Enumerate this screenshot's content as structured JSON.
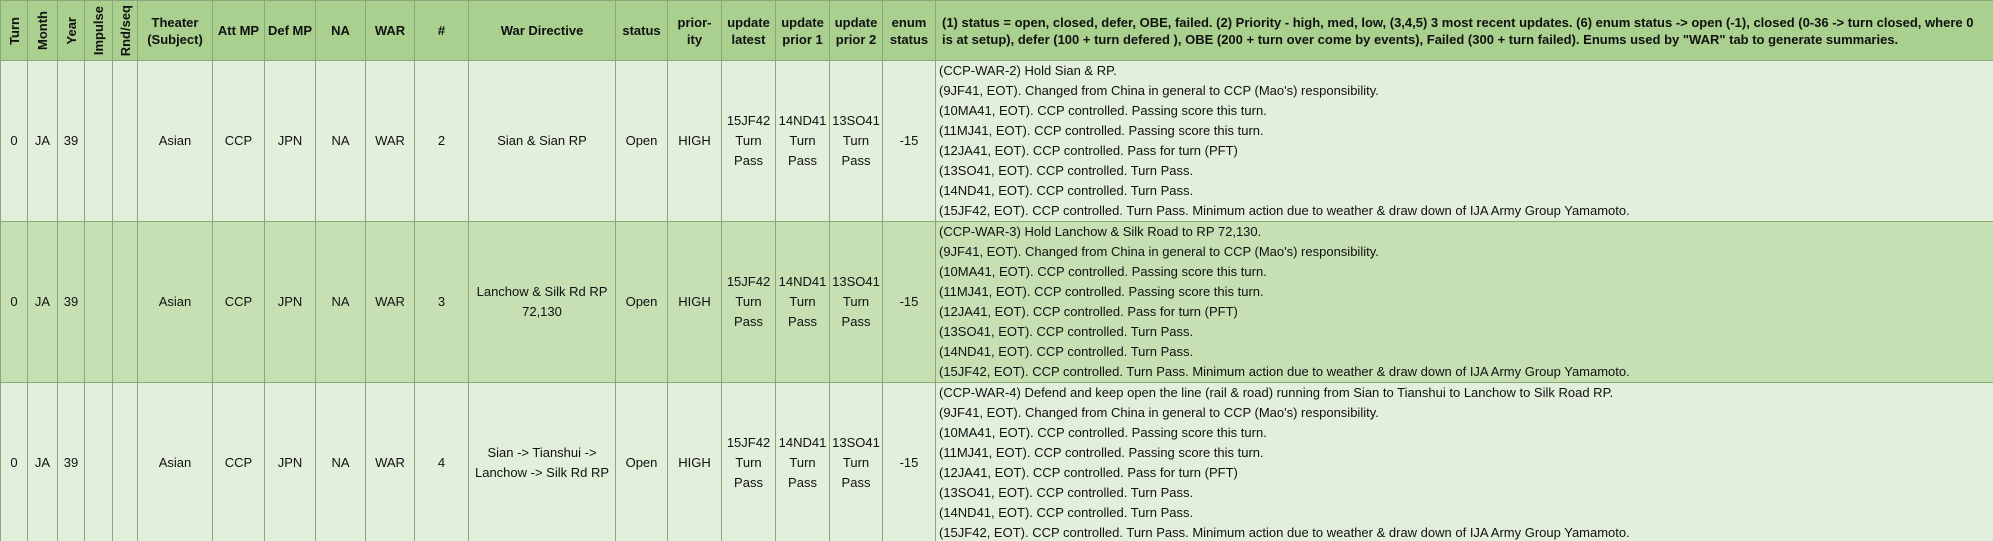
{
  "header": {
    "columns": [
      [
        "Turn"
      ],
      [
        "Month"
      ],
      [
        "Year"
      ],
      [
        "Impulse"
      ],
      [
        "Rnd/seq"
      ],
      [
        "Theater",
        "(Subject)"
      ],
      [
        "Att MP"
      ],
      [
        "Def MP"
      ],
      [
        "NA"
      ],
      [
        "WAR"
      ],
      [
        "#"
      ],
      [
        "War Directive"
      ],
      [
        "status"
      ],
      [
        "prior-",
        "ity"
      ],
      [
        "update",
        "latest"
      ],
      [
        "update",
        "prior 1"
      ],
      [
        "update",
        "prior 2"
      ],
      [
        "enum",
        "status"
      ],
      [
        "(1) status = open, closed, defer, OBE, failed.  (2) Priority - high, med, low,  (3,4,5) 3 most recent updates.  (6) enum status -> open (-1), closed (0-36 -> turn closed, where 0",
        "is at setup), defer (100 + turn defered ), OBE (200 + turn over come by events), Failed (300 + turn failed).  Enums used by \"WAR\" tab to generate summaries."
      ]
    ]
  },
  "rows": [
    {
      "turn": 0,
      "month": "JA",
      "year": 39,
      "theater": "Asian",
      "att_mp": "CCP",
      "def_mp": "JPN",
      "na": "NA",
      "war": "WAR",
      "num": 2,
      "directive": "Sian & Sian RP",
      "status": "Open",
      "priority": "HIGH",
      "update_latest": "15JF42 Turn Pass",
      "update_prior_1": "14ND41 Turn Pass",
      "update_prior_2": "13SO41 Turn Pass",
      "enum_status": -15,
      "notes": [
        "(CCP-WAR-2) Hold Sian & RP.",
        "(9JF41, EOT).  Changed from China in general to CCP (Mao's) responsibility.",
        "(10MA41, EOT).  CCP controlled.  Passing score this turn.",
        "(11MJ41, EOT).  CCP controlled.  Passing score this turn.",
        "(12JA41, EOT). CCP controlled.  Pass for turn (PFT)",
        "(13SO41, EOT).  CCP controlled.  Turn Pass.",
        "(14ND41, EOT).  CCP controlled.  Turn Pass.",
        "(15JF42, EOT).  CCP controlled.  Turn Pass.  Minimum action due to weather & draw down of IJA Army Group Yamamoto."
      ]
    },
    {
      "turn": 0,
      "month": "JA",
      "year": 39,
      "theater": "Asian",
      "att_mp": "CCP",
      "def_mp": "JPN",
      "na": "NA",
      "war": "WAR",
      "num": 3,
      "directive": "Lanchow & Silk Rd RP 72,130",
      "status": "Open",
      "priority": "HIGH",
      "update_latest": "15JF42 Turn Pass",
      "update_prior_1": "14ND41 Turn Pass",
      "update_prior_2": "13SO41 Turn Pass",
      "enum_status": -15,
      "notes": [
        "(CCP-WAR-3) Hold Lanchow & Silk Road to RP 72,130.",
        "(9JF41, EOT).  Changed from China in general to CCP (Mao's) responsibility.",
        "(10MA41, EOT).  CCP controlled.  Passing score this turn.",
        "(11MJ41, EOT).  CCP controlled.  Passing score this turn.",
        "(12JA41, EOT). CCP controlled.  Pass for turn (PFT)",
        "(13SO41, EOT).  CCP controlled.  Turn Pass.",
        "(14ND41, EOT).  CCP controlled.  Turn Pass.",
        "(15JF42, EOT).  CCP controlled.  Turn Pass.  Minimum action due to weather & draw down of IJA Army Group Yamamoto."
      ]
    },
    {
      "turn": 0,
      "month": "JA",
      "year": 39,
      "theater": "Asian",
      "att_mp": "CCP",
      "def_mp": "JPN",
      "na": "NA",
      "war": "WAR",
      "num": 4,
      "directive": "Sian -> Tianshui -> Lanchow -> Silk Rd RP",
      "status": "Open",
      "priority": "HIGH",
      "update_latest": "15JF42 Turn Pass",
      "update_prior_1": "14ND41 Turn Pass",
      "update_prior_2": "13SO41 Turn Pass",
      "enum_status": -15,
      "notes": [
        "(CCP-WAR-4) Defend and keep open the line (rail & road) running from Sian to Tianshui to Lanchow to Silk Road RP.",
        "(9JF41, EOT).  Changed from China in general to CCP (Mao's) responsibility.",
        "(10MA41, EOT).  CCP controlled.  Passing score this turn.",
        "(11MJ41, EOT).  CCP controlled.  Passing score this turn.",
        "(12JA41, EOT). CCP controlled.  Pass for turn (PFT)",
        "(13SO41, EOT).  CCP controlled.  Turn Pass.",
        "(14ND41, EOT).  CCP controlled.  Turn Pass.",
        "(15JF42, EOT).  CCP controlled.  Turn Pass.  Minimum action due to weather & draw down of IJA Army Group Yamamoto."
      ]
    }
  ]
}
